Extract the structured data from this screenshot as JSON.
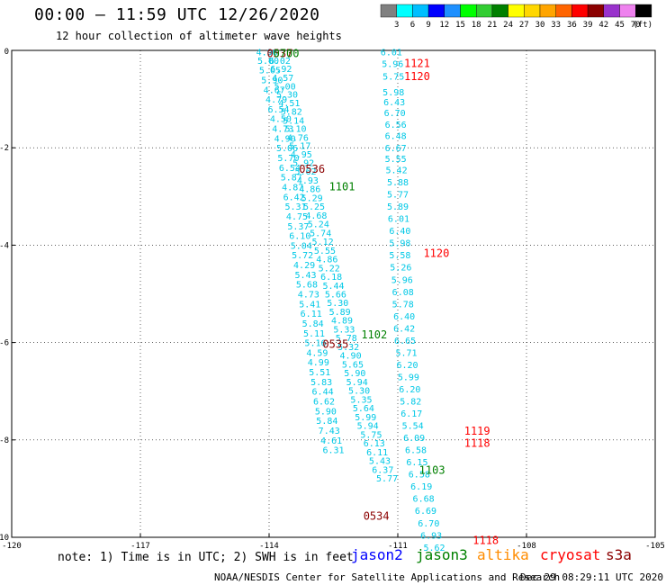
{
  "title": "00:00 – 11:59 UTC 12/26/2020",
  "subtitle": "12 hour collection of altimeter wave heights",
  "note": "note: 1) Time is in UTC; 2) SWH is in feet",
  "satellites": [
    {
      "name": "jason2",
      "color": "#0000ff"
    },
    {
      "name": "jason3",
      "color": "#008000"
    },
    {
      "name": "altika",
      "color": "#ff8c00"
    },
    {
      "name": "cryosat",
      "color": "#ff0000"
    },
    {
      "name": "s3a",
      "color": "#8b0000"
    }
  ],
  "footer_center": "NOAA/NESDIS Center for Satellite Applications and Research",
  "footer_date": "Dec 29 08:29:11 UTC 2020",
  "color_scale": {
    "unit": "(ft)",
    "labels": [
      "3",
      "6",
      "9",
      "12",
      "15",
      "18",
      "21",
      "24",
      "27",
      "30",
      "33",
      "36",
      "39",
      "42",
      "45",
      "70"
    ],
    "colors": [
      "#808080",
      "#00ffff",
      "#00bfff",
      "#0000ff",
      "#1e90ff",
      "#00ff00",
      "#32cd32",
      "#008000",
      "#ffff00",
      "#ffd700",
      "#ffa500",
      "#ff6400",
      "#ff0000",
      "#8b0000",
      "#9932cc",
      "#ee82ee",
      "#000000"
    ]
  },
  "chart_data": {
    "type": "scatter",
    "xlim": [
      -120,
      -105
    ],
    "ylim": [
      -10,
      0
    ],
    "x_ticks": [
      "-120",
      "-117",
      "-114",
      "-111",
      "-108",
      "-105"
    ],
    "y_ticks": [
      "0",
      "-2",
      "-4",
      "-6",
      "-8",
      "-10"
    ],
    "value_color": "#00c8e6",
    "tracks": [
      {
        "points": [
          [
            -114.05,
            -0.03,
            "4.96"
          ],
          [
            -114.02,
            -0.2,
            "5.00"
          ],
          [
            -113.98,
            -0.4,
            "5.05"
          ],
          [
            -113.93,
            -0.6,
            "5.90"
          ],
          [
            -113.88,
            -0.8,
            "4.67"
          ],
          [
            -113.83,
            -1.0,
            "4.79"
          ],
          [
            -113.78,
            -1.2,
            "6.54"
          ],
          [
            -113.73,
            -1.4,
            "4.50"
          ],
          [
            -113.68,
            -1.6,
            "4.73"
          ],
          [
            -113.63,
            -1.8,
            "4.90"
          ],
          [
            -113.58,
            -2.0,
            "5.06"
          ],
          [
            -113.55,
            -2.2,
            "5.70"
          ],
          [
            -113.52,
            -2.4,
            "6.54"
          ],
          [
            -113.48,
            -2.6,
            "5.87"
          ],
          [
            -113.45,
            -2.8,
            "4.87"
          ],
          [
            -113.42,
            -3.0,
            "6.42"
          ],
          [
            -113.38,
            -3.2,
            "5.31"
          ],
          [
            -113.35,
            -3.4,
            "4.75"
          ],
          [
            -113.32,
            -3.6,
            "5.37"
          ],
          [
            -113.28,
            -3.8,
            "6.10"
          ],
          [
            -113.25,
            -4.0,
            "5.04"
          ],
          [
            -113.22,
            -4.2,
            "5.72"
          ],
          [
            -113.18,
            -4.4,
            "4.29"
          ],
          [
            -113.15,
            -4.6,
            "5.43"
          ],
          [
            -113.12,
            -4.8,
            "5.68"
          ],
          [
            -113.08,
            -5.0,
            "4.73"
          ],
          [
            -113.05,
            -5.2,
            "5.41"
          ],
          [
            -113.02,
            -5.4,
            "6.11"
          ],
          [
            -112.98,
            -5.6,
            "5.84"
          ],
          [
            -112.95,
            -5.8,
            "5.11"
          ],
          [
            -112.92,
            -6.0,
            "5.16"
          ],
          [
            -112.88,
            -6.2,
            "4.59"
          ],
          [
            -112.85,
            -6.4,
            "4.99"
          ],
          [
            -112.82,
            -6.6,
            "5.51"
          ],
          [
            -112.78,
            -6.8,
            "5.83"
          ],
          [
            -112.75,
            -7.0,
            "6.44"
          ],
          [
            -112.72,
            -7.2,
            "6.62"
          ],
          [
            -112.68,
            -7.4,
            "5.90"
          ],
          [
            -112.65,
            -7.6,
            "5.84"
          ],
          [
            -112.6,
            -7.8,
            "7.43"
          ],
          [
            -112.55,
            -8.0,
            "4.61"
          ],
          [
            -112.5,
            -8.2,
            "6.31"
          ]
        ]
      },
      {
        "points": [
          [
            -113.75,
            -0.2,
            "6.02"
          ],
          [
            -113.72,
            -0.37,
            "6.92"
          ],
          [
            -113.68,
            -0.55,
            "4.57"
          ],
          [
            -113.63,
            -0.73,
            "5.00"
          ],
          [
            -113.58,
            -0.9,
            "5.30"
          ],
          [
            -113.53,
            -1.07,
            "4.51"
          ],
          [
            -113.48,
            -1.25,
            "5.82"
          ],
          [
            -113.43,
            -1.43,
            "5.14"
          ],
          [
            -113.38,
            -1.6,
            "5.10"
          ],
          [
            -113.33,
            -1.78,
            "4.76"
          ],
          [
            -113.28,
            -1.95,
            "5.17"
          ],
          [
            -113.25,
            -2.13,
            "4.95"
          ],
          [
            -113.2,
            -2.3,
            "5.92"
          ],
          [
            -113.15,
            -2.48,
            "5.62"
          ],
          [
            -113.1,
            -2.66,
            "4.93"
          ],
          [
            -113.05,
            -2.84,
            "4.86"
          ],
          [
            -113.0,
            -3.02,
            "5.29"
          ],
          [
            -112.95,
            -3.2,
            "5.25"
          ],
          [
            -112.9,
            -3.38,
            "4.68"
          ],
          [
            -112.85,
            -3.56,
            "5.24"
          ],
          [
            -112.8,
            -3.74,
            "5.74"
          ],
          [
            -112.75,
            -3.92,
            "5.12"
          ],
          [
            -112.7,
            -4.1,
            "5.55"
          ],
          [
            -112.65,
            -4.28,
            "4.86"
          ],
          [
            -112.6,
            -4.46,
            "5.22"
          ],
          [
            -112.55,
            -4.64,
            "6.18"
          ],
          [
            -112.5,
            -4.82,
            "5.44"
          ],
          [
            -112.45,
            -5.0,
            "5.66"
          ],
          [
            -112.4,
            -5.18,
            "5.30"
          ],
          [
            -112.35,
            -5.36,
            "5.89"
          ],
          [
            -112.3,
            -5.54,
            "4.89"
          ],
          [
            -112.25,
            -5.72,
            "5.33"
          ],
          [
            -112.2,
            -5.9,
            "5.78"
          ],
          [
            -112.15,
            -6.08,
            "5.32"
          ],
          [
            -112.1,
            -6.26,
            "4.90"
          ],
          [
            -112.05,
            -6.44,
            "5.65"
          ],
          [
            -112.0,
            -6.62,
            "5.90"
          ],
          [
            -111.95,
            -6.8,
            "5.94"
          ],
          [
            -111.9,
            -6.98,
            "5.30"
          ],
          [
            -111.85,
            -7.16,
            "5.35"
          ],
          [
            -111.8,
            -7.34,
            "5.64"
          ],
          [
            -111.75,
            -7.52,
            "5.99"
          ],
          [
            -111.7,
            -7.7,
            "5.94"
          ],
          [
            -111.62,
            -7.88,
            "5.75"
          ],
          [
            -111.55,
            -8.06,
            "6.13"
          ],
          [
            -111.48,
            -8.24,
            "6.11"
          ],
          [
            -111.42,
            -8.42,
            "5.43"
          ],
          [
            -111.35,
            -8.6,
            "6.37"
          ],
          [
            -111.25,
            -8.78,
            "5.77"
          ]
        ]
      },
      {
        "points": [
          [
            -111.15,
            -0.03,
            "6.01"
          ],
          [
            -111.12,
            -0.27,
            "5.96"
          ],
          [
            -111.1,
            -0.53,
            "5.75"
          ],
          [
            -111.1,
            -0.85,
            "5.98"
          ],
          [
            -111.08,
            -1.05,
            "6.43"
          ],
          [
            -111.07,
            -1.28,
            "6.70"
          ],
          [
            -111.05,
            -1.52,
            "6.56"
          ],
          [
            -111.05,
            -1.75,
            "6.48"
          ],
          [
            -111.05,
            -2.0,
            "6.67"
          ],
          [
            -111.05,
            -2.22,
            "5.55"
          ],
          [
            -111.03,
            -2.45,
            "5.42"
          ],
          [
            -111.0,
            -2.7,
            "5.88"
          ],
          [
            -111.0,
            -2.95,
            "5.77"
          ],
          [
            -111.0,
            -3.2,
            "5.89"
          ],
          [
            -110.98,
            -3.45,
            "6.01"
          ],
          [
            -110.95,
            -3.7,
            "6.40"
          ],
          [
            -110.95,
            -3.95,
            "5.98"
          ],
          [
            -110.95,
            -4.2,
            "5.58"
          ],
          [
            -110.93,
            -4.45,
            "5.26"
          ],
          [
            -110.9,
            -4.7,
            "5.96"
          ],
          [
            -110.88,
            -4.95,
            "6.08"
          ],
          [
            -110.88,
            -5.2,
            "5.78"
          ],
          [
            -110.85,
            -5.45,
            "6.40"
          ],
          [
            -110.85,
            -5.7,
            "6.42"
          ],
          [
            -110.83,
            -5.95,
            "6.65"
          ],
          [
            -110.8,
            -6.2,
            "5.71"
          ],
          [
            -110.78,
            -6.45,
            "6.20"
          ],
          [
            -110.75,
            -6.7,
            "5.99"
          ],
          [
            -110.72,
            -6.95,
            "6.20"
          ],
          [
            -110.7,
            -7.2,
            "5.82"
          ],
          [
            -110.68,
            -7.45,
            "6.17"
          ],
          [
            -110.65,
            -7.7,
            "5.54"
          ],
          [
            -110.62,
            -7.95,
            "6.09"
          ],
          [
            -110.58,
            -8.2,
            "6.58"
          ],
          [
            -110.55,
            -8.45,
            "6.15"
          ],
          [
            -110.5,
            -8.7,
            "6.58"
          ],
          [
            -110.45,
            -8.95,
            "6.19"
          ],
          [
            -110.4,
            -9.2,
            "6.68"
          ],
          [
            -110.35,
            -9.45,
            "6.69"
          ],
          [
            -110.28,
            -9.7,
            "6.70"
          ],
          [
            -110.22,
            -9.95,
            "6.93"
          ],
          [
            -110.15,
            -10.2,
            "5.62"
          ]
        ]
      }
    ],
    "time_labels": [
      {
        "x": -113.75,
        "y": -0.05,
        "text": "0537",
        "color": "#8b0000"
      },
      {
        "x": -113.6,
        "y": -0.05,
        "text": "0700",
        "color": "#008000"
      },
      {
        "x": -110.55,
        "y": -0.25,
        "text": "1121",
        "color": "#ff0000"
      },
      {
        "x": -110.55,
        "y": -0.52,
        "text": "1120",
        "color": "#ff0000"
      },
      {
        "x": -113.0,
        "y": -2.42,
        "text": "0536",
        "color": "#8b0000"
      },
      {
        "x": -112.3,
        "y": -2.78,
        "text": "1101",
        "color": "#008000"
      },
      {
        "x": -110.1,
        "y": -4.15,
        "text": "1120",
        "color": "#ff0000"
      },
      {
        "x": -111.55,
        "y": -5.82,
        "text": "1102",
        "color": "#008000"
      },
      {
        "x": -112.45,
        "y": -6.02,
        "text": "0535",
        "color": "#8b0000"
      },
      {
        "x": -109.15,
        "y": -7.8,
        "text": "1119",
        "color": "#ff0000"
      },
      {
        "x": -109.15,
        "y": -8.05,
        "text": "1118",
        "color": "#ff0000"
      },
      {
        "x": -110.2,
        "y": -8.6,
        "text": "1103",
        "color": "#008000"
      },
      {
        "x": -111.5,
        "y": -9.55,
        "text": "0534",
        "color": "#8b0000"
      },
      {
        "x": -108.95,
        "y": -10.05,
        "text": "1118",
        "color": "#ff0000"
      }
    ]
  }
}
